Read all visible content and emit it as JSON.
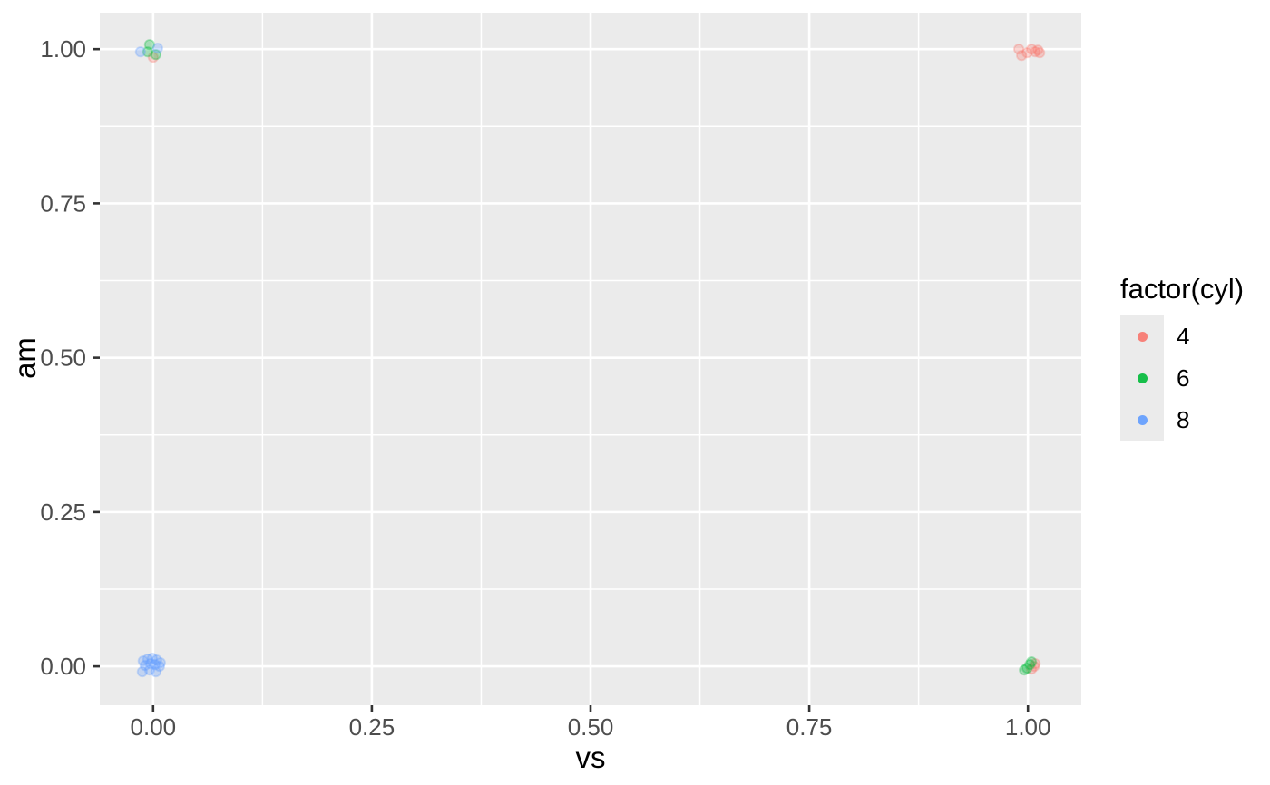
{
  "figure": {
    "background": "#FFFFFF"
  },
  "chart_data": {
    "type": "scatter",
    "title": "",
    "xlabel": "vs",
    "ylabel": "am",
    "legend": {
      "title": "factor(cyl)",
      "position": "right"
    },
    "xlim": [
      -0.061,
      1.061
    ],
    "ylim": [
      -0.063,
      1.059
    ],
    "x_ticks": {
      "values": [
        0,
        0.25,
        0.5,
        0.75,
        1
      ],
      "labels": [
        "0.00",
        "0.25",
        "0.50",
        "0.75",
        "1.00"
      ]
    },
    "y_ticks": {
      "values": [
        0,
        0.25,
        0.5,
        0.75,
        1
      ],
      "labels": [
        "0.00",
        "0.25",
        "0.50",
        "0.75",
        "1.00"
      ]
    },
    "x_minor": [
      0.125,
      0.375,
      0.625,
      0.875
    ],
    "y_minor": [
      0.125,
      0.375,
      0.625,
      0.875
    ],
    "grid": true,
    "panel_bg": "#EBEBEB",
    "grid_color": "#FFFFFF",
    "tick_color": "#333333",
    "tick_label_color": "#4D4D4D",
    "point_alpha": 0.3,
    "point_radius": 5.2,
    "series": [
      {
        "name": "4",
        "color": "#F8766D",
        "points": [
          [
            0.9896,
            1.0
          ],
          [
            0.9927,
            0.9897
          ],
          [
            0.999,
            0.9941
          ],
          [
            1.0041,
            1.0
          ],
          [
            1.0083,
            0.9956
          ],
          [
            1.0114,
            0.9985
          ],
          [
            1.0135,
            0.9941
          ],
          [
            0.0,
            0.9868
          ],
          [
            1.0083,
            0.0044
          ],
          [
            1.0041,
            -0.0044
          ],
          [
            1.0073,
            0.0
          ]
        ]
      },
      {
        "name": "6",
        "color": "#00BA38",
        "points": [
          [
            -0.0041,
            1.0073
          ],
          [
            0.0031,
            0.9912
          ],
          [
            -0.0062,
            0.9956
          ],
          [
            0.9959,
            -0.0059
          ],
          [
            0.999,
            -0.0029
          ],
          [
            1.0021,
            0.0029
          ],
          [
            1.0041,
            0.0073
          ]
        ]
      },
      {
        "name": "8",
        "color": "#619CFF",
        "points": [
          [
            -0.0145,
            0.9956
          ],
          [
            0.0052,
            1.0015
          ],
          [
            -0.0114,
            0.0088
          ],
          [
            -0.0062,
            0.0117
          ],
          [
            -0.001,
            0.0132
          ],
          [
            0.0041,
            0.0103
          ],
          [
            0.0083,
            0.0059
          ],
          [
            -0.0093,
            0.0015
          ],
          [
            -0.0031,
            0.0044
          ],
          [
            0.0021,
            0.0029
          ],
          [
            0.0073,
            0.0
          ],
          [
            -0.0124,
            -0.0088
          ],
          [
            -0.0041,
            -0.0059
          ],
          [
            0.0031,
            -0.0088
          ]
        ]
      }
    ]
  }
}
